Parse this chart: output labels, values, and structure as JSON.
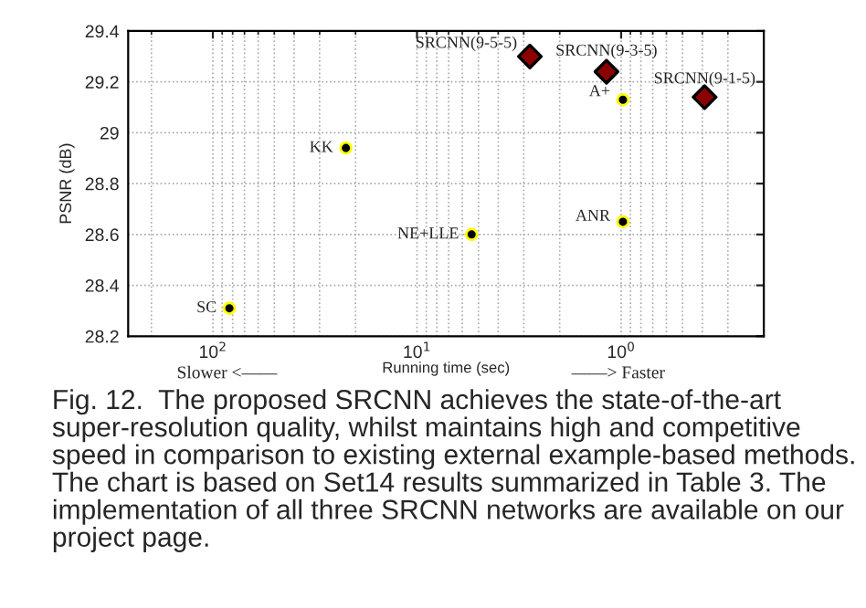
{
  "chart_data": {
    "type": "scatter",
    "xlabel": "Running time (sec)",
    "ylabel": "PSNR (dB)",
    "log": "x",
    "grid": true,
    "xlim": [
      260,
      0.2
    ],
    "xticks": [
      {
        "value": 100,
        "label": "10$^{2}$"
      },
      {
        "value": 10,
        "label": "10$^{1}$"
      },
      {
        "value": 1,
        "label": "10$^{0}$"
      }
    ],
    "ylim": [
      28.2,
      29.4
    ],
    "yticks": [
      28.2,
      28.4,
      28.6,
      28.8,
      29,
      29.2,
      29.4
    ],
    "series": [
      {
        "color": "#000000",
        "marker": "circle",
        "x": [
          83,
          22.3,
          5.4,
          0.98,
          0.98
        ],
        "values": [
          28.31,
          28.94,
          28.6,
          29.13,
          28.65
        ]
      },
      {
        "color": "#8b0000",
        "marker": "diamond",
        "x": [
          2.8,
          1.18,
          0.39
        ],
        "values": [
          29.3,
          29.24,
          29.14
        ]
      }
    ],
    "annotations": [
      {
        "text": "SC",
        "x": 83,
        "y": 28.31
      },
      {
        "text": "KK",
        "x": 22.3,
        "y": 28.94
      },
      {
        "text": "NE+LLE",
        "x": 5.4,
        "y": 28.6
      },
      {
        "text": "A+",
        "x": 0.98,
        "y": 29.13
      },
      {
        "text": "ANR",
        "x": 0.98,
        "y": 28.65
      },
      {
        "text": "SRCNN(9-5-5)",
        "x": 2.8,
        "y": 29.3
      },
      {
        "text": "SRCNN(9-3-5)",
        "x": 1.18,
        "y": 29.24
      },
      {
        "text": "SRCNN(9-1-5)",
        "x": 0.39,
        "y": 29.14
      },
      "Slower <——",
      "——> Faster",
      "Fig. 12.  The proposed SRCNN achieves the state-of-the-art super-resolution quality, whilst maintains high and competitive speed in comparison to existing external example-based methods. The chart is based on Set14 results summarized in Table 3. The implementation of all three SRCNN networks are available on our project page."
    ]
  }
}
